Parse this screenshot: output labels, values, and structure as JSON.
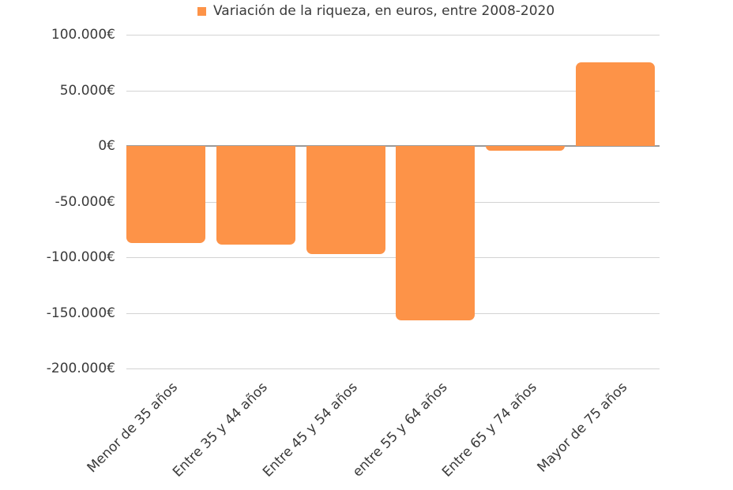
{
  "legend": {
    "label": "Variación de la riqueza, en euros, entre 2008-2020",
    "color": "#fd9348"
  },
  "y_axis": {
    "ticks": [
      {
        "value": 100000,
        "label": "100.000€"
      },
      {
        "value": 50000,
        "label": "50.000€"
      },
      {
        "value": 0,
        "label": "0€"
      },
      {
        "value": -50000,
        "label": "-50.000€"
      },
      {
        "value": -100000,
        "label": "-100.000€"
      },
      {
        "value": -150000,
        "label": "-150.000€"
      },
      {
        "value": -200000,
        "label": "-200.000€"
      }
    ]
  },
  "x_axis": {
    "labels": [
      "Menor de 35 años",
      "Entre 35 y 44 años",
      "Entre 45 y 54 años",
      "entre 55 y 64 años",
      "Entre 65 y 74 años",
      "Mayor de 75 años"
    ]
  },
  "chart_data": {
    "type": "bar",
    "title": "",
    "xlabel": "",
    "ylabel": "",
    "categories": [
      "Menor de 35 años",
      "Entre 35 y 44 años",
      "Entre 45 y 54 años",
      "entre 55 y 64 años",
      "Entre 65 y 74 años",
      "Mayor de 75 años"
    ],
    "series": [
      {
        "name": "Variación de la riqueza, en euros, entre 2008-2020",
        "color": "#fd9348",
        "values": [
          -87000,
          -89000,
          -97000,
          -157000,
          -4000,
          75000
        ]
      }
    ],
    "ylim": [
      -200000,
      100000
    ],
    "ytick_step": 50000,
    "ytick_labels": [
      "100.000€",
      "50.000€",
      "0€",
      "-50.000€",
      "-100.000€",
      "-150.000€",
      "-200.000€"
    ],
    "grid": true,
    "legend_position": "top",
    "xtick_rotation": -45
  }
}
